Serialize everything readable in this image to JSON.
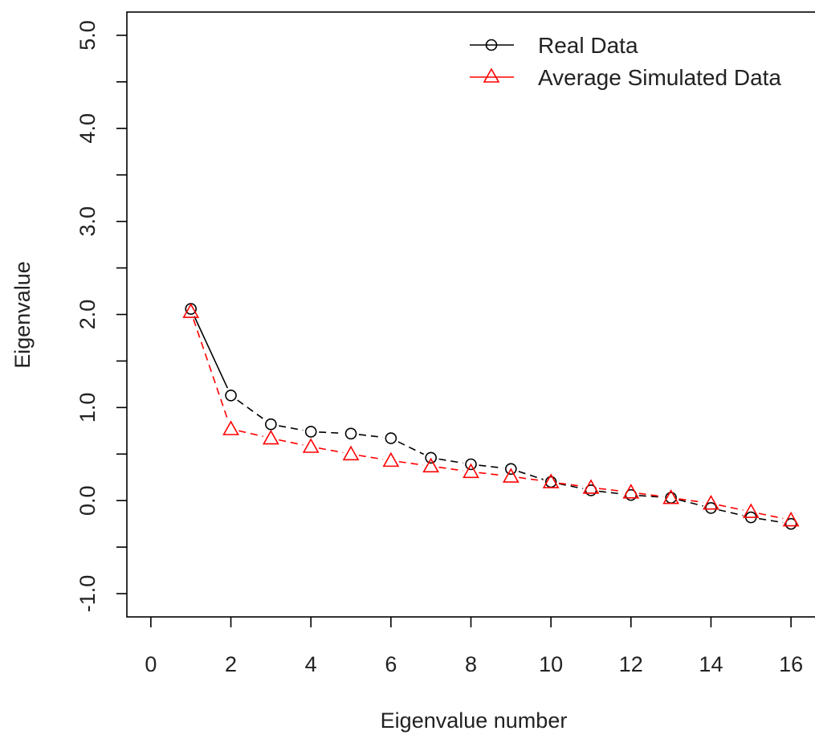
{
  "chart_data": {
    "type": "line",
    "title": "",
    "xlabel": "Eigenvalue number",
    "ylabel": "Eigenvalue",
    "xlim": [
      -0.6,
      16.6
    ],
    "ylim": [
      -1.25,
      5.25
    ],
    "xticks": [
      0,
      2,
      4,
      6,
      8,
      10,
      12,
      14,
      16
    ],
    "xtick_labels": [
      "0",
      "2",
      "4",
      "6",
      "8",
      "10",
      "12",
      "14",
      "16"
    ],
    "yticks": [
      -1.0,
      -0.5,
      0.0,
      0.5,
      1.0,
      1.5,
      2.0,
      2.5,
      3.0,
      3.5,
      4.0,
      4.5,
      5.0
    ],
    "ytick_labels": [
      "-1.0",
      "",
      "0.0",
      "",
      "1.0",
      "",
      "2.0",
      "",
      "3.0",
      "",
      "4.0",
      "",
      "5.0"
    ],
    "grid": false,
    "legend_position": "top-right",
    "x": [
      1,
      2,
      3,
      4,
      5,
      6,
      7,
      8,
      9,
      10,
      11,
      12,
      13,
      14,
      15,
      16
    ],
    "series": [
      {
        "name": "Real Data",
        "color": "#000000",
        "marker": "circle",
        "line_style": "solid-to-dashed",
        "values": [
          2.06,
          1.13,
          0.82,
          0.74,
          0.72,
          0.67,
          0.46,
          0.39,
          0.34,
          0.2,
          0.11,
          0.06,
          0.03,
          -0.08,
          -0.18,
          -0.25
        ]
      },
      {
        "name": "Average Simulated Data",
        "color": "#ff0000",
        "marker": "triangle",
        "line_style": "dashed",
        "values": [
          2.03,
          0.77,
          0.67,
          0.58,
          0.5,
          0.43,
          0.37,
          0.31,
          0.26,
          0.2,
          0.14,
          0.09,
          0.03,
          -0.03,
          -0.12,
          -0.21
        ]
      }
    ]
  }
}
